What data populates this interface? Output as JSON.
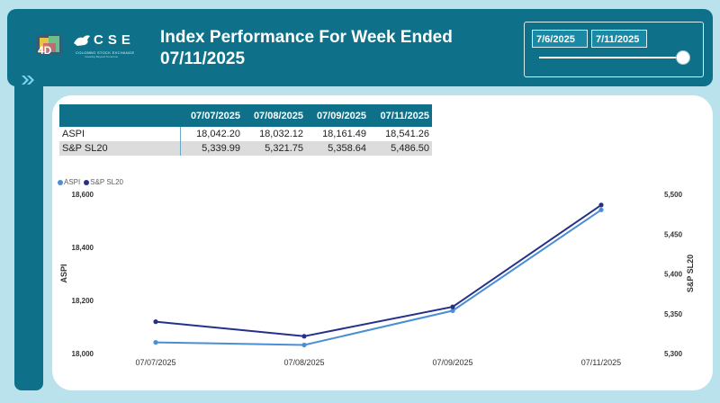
{
  "header": {
    "title_line1": "Index Performance For Week Ended",
    "title_line2": "07/11/2025",
    "cse_letters": "CSE",
    "cse_subtitle": "COLOMBO STOCK EXCHANGE",
    "cse_tagline": "Investing Beyond Tomorrow"
  },
  "slicer": {
    "from_date": "7/6/2025",
    "to_date": "7/11/2025",
    "position": 1.0
  },
  "table": {
    "headers": [
      "",
      "07/07/2025",
      "07/08/2025",
      "07/09/2025",
      "07/11/2025"
    ],
    "rows": [
      {
        "name": "ASPI",
        "values": [
          "18,042.20",
          "18,032.12",
          "18,161.49",
          "18,541.26"
        ]
      },
      {
        "name": "S&P SL20",
        "values": [
          "5,339.99",
          "5,321.75",
          "5,358.64",
          "5,486.50"
        ]
      }
    ]
  },
  "colors": {
    "header_bg": "#0e7189",
    "aspi": "#4a8fd4",
    "sp_sl20": "#25308a"
  },
  "chart_data": {
    "type": "line",
    "categories": [
      "07/07/2025",
      "07/08/2025",
      "07/09/2025",
      "07/11/2025"
    ],
    "series": [
      {
        "name": "ASPI",
        "axis": "left",
        "values": [
          18042.2,
          18032.12,
          18161.49,
          18541.26
        ]
      },
      {
        "name": "S&P SL20",
        "axis": "right",
        "values": [
          5339.99,
          5321.75,
          5358.64,
          5486.5
        ]
      }
    ],
    "ylabel_left": "ASPI",
    "ylabel_right": "S&P SL20",
    "ylim_left": [
      18000,
      18600
    ],
    "ylim_right": [
      5300,
      5500
    ],
    "yticks_left": [
      "18,000",
      "18,200",
      "18,400",
      "18,600"
    ],
    "yticks_right": [
      "5,300",
      "5,350",
      "5,400",
      "5,450",
      "5,500"
    ],
    "legend": "top-left",
    "grid": false
  }
}
